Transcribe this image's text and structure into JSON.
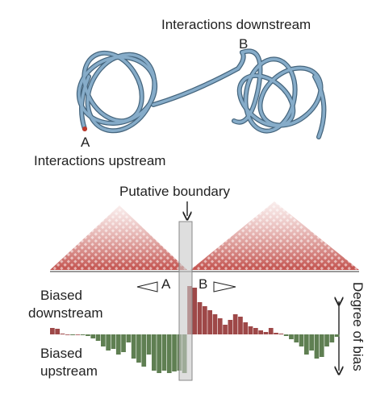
{
  "labels": {
    "downstream": "Interactions downstream",
    "b_top": "B",
    "a_top": "A",
    "upstream": "Interactions upstream",
    "boundary": "Putative boundary",
    "a_mid": "A",
    "b_mid": "B",
    "biased_down_1": "Biased",
    "biased_down_2": "downstream",
    "biased_up_1": "Biased",
    "biased_up_2": "upstream",
    "degree": "Degree of bias"
  },
  "bias": [
    8,
    7,
    1,
    0,
    -1,
    0,
    -1,
    -2,
    -5,
    -8,
    -15,
    -20,
    -18,
    -25,
    -22,
    -10,
    -30,
    -35,
    -40,
    -25,
    -45,
    -48,
    -45,
    -48,
    -46,
    -45,
    -48,
    60,
    58,
    40,
    35,
    30,
    25,
    20,
    12,
    18,
    25,
    22,
    15,
    10,
    8,
    5,
    3,
    8,
    2,
    1,
    -2,
    -6,
    -10,
    -15,
    -25,
    -20,
    -30,
    -28,
    -15,
    -10,
    -3
  ]
}
